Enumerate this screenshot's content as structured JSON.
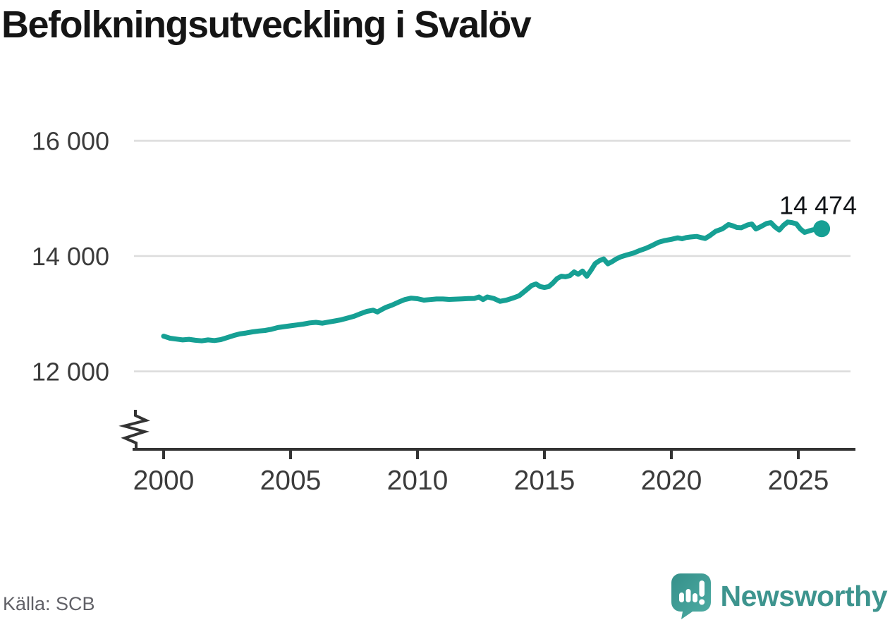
{
  "title": "Befolkningsutveckling i Svalöv",
  "source": "Källa: SCB",
  "logo": {
    "text": "Newsworthy"
  },
  "colors": {
    "line": "#16a094",
    "grid": "#dcdcdc",
    "axis": "#333333",
    "tick_label": "#3b3b3b",
    "title": "#151515",
    "source": "#616167",
    "logo": "#3d948e",
    "end_label": "#111418"
  },
  "chart_data": {
    "type": "line",
    "title": "Befolkningsutveckling i Svalöv",
    "series_name": "Befolkning i Svalöv",
    "xlabel": "",
    "ylabel": "",
    "x_range": [
      2000,
      2026
    ],
    "ylim": [
      12000,
      16000
    ],
    "axis_break": true,
    "grid": "horizontal",
    "legend": "none",
    "xticks": [
      {
        "value": 2000,
        "label": "2000"
      },
      {
        "value": 2005,
        "label": "2005"
      },
      {
        "value": 2010,
        "label": "2010"
      },
      {
        "value": 2015,
        "label": "2015"
      },
      {
        "value": 2020,
        "label": "2020"
      },
      {
        "value": 2025,
        "label": "2025"
      }
    ],
    "yticks": [
      {
        "value": 16000,
        "label": "16 000"
      },
      {
        "value": 14000,
        "label": "14 000"
      },
      {
        "value": 12000,
        "label": "12 000"
      }
    ],
    "x": [
      2000.0,
      2000.25,
      2000.5,
      2000.75,
      2001.0,
      2001.25,
      2001.5,
      2001.75,
      2002.0,
      2002.25,
      2002.5,
      2002.75,
      2003.0,
      2003.25,
      2003.5,
      2003.75,
      2004.0,
      2004.25,
      2004.5,
      2004.75,
      2005.0,
      2005.25,
      2005.5,
      2005.75,
      2006.0,
      2006.25,
      2006.5,
      2006.75,
      2007.0,
      2007.25,
      2007.5,
      2007.75,
      2008.0,
      2008.25,
      2008.42,
      2008.58,
      2008.75,
      2009.0,
      2009.25,
      2009.5,
      2009.75,
      2010.0,
      2010.25,
      2010.5,
      2010.75,
      2011.0,
      2011.25,
      2011.5,
      2011.75,
      2012.0,
      2012.25,
      2012.42,
      2012.58,
      2012.75,
      2013.0,
      2013.25,
      2013.5,
      2013.75,
      2014.0,
      2014.25,
      2014.5,
      2014.67,
      2014.83,
      2015.0,
      2015.17,
      2015.33,
      2015.5,
      2015.67,
      2015.83,
      2016.0,
      2016.17,
      2016.33,
      2016.5,
      2016.67,
      2016.83,
      2017.0,
      2017.17,
      2017.33,
      2017.5,
      2017.67,
      2017.83,
      2018.0,
      2018.25,
      2018.5,
      2018.75,
      2019.0,
      2019.25,
      2019.5,
      2019.75,
      2020.0,
      2020.25,
      2020.42,
      2020.58,
      2020.75,
      2021.0,
      2021.17,
      2021.33,
      2021.5,
      2021.75,
      2022.0,
      2022.25,
      2022.42,
      2022.58,
      2022.75,
      2023.0,
      2023.17,
      2023.33,
      2023.5,
      2023.75,
      2023.92,
      2024.08,
      2024.25,
      2024.42,
      2024.58,
      2024.75,
      2024.92,
      2025.08,
      2025.25,
      2025.42,
      2025.58,
      2025.75,
      2025.92
    ],
    "y": [
      12610,
      12575,
      12560,
      12545,
      12555,
      12540,
      12530,
      12545,
      12535,
      12550,
      12585,
      12620,
      12650,
      12665,
      12685,
      12700,
      12710,
      12730,
      12760,
      12775,
      12790,
      12805,
      12820,
      12840,
      12850,
      12835,
      12855,
      12875,
      12895,
      12925,
      12955,
      13000,
      13040,
      13060,
      13030,
      13070,
      13110,
      13150,
      13200,
      13245,
      13270,
      13260,
      13235,
      13245,
      13255,
      13255,
      13248,
      13252,
      13258,
      13262,
      13265,
      13290,
      13245,
      13290,
      13265,
      13215,
      13235,
      13270,
      13310,
      13400,
      13490,
      13515,
      13470,
      13455,
      13470,
      13530,
      13610,
      13650,
      13640,
      13660,
      13725,
      13685,
      13740,
      13650,
      13750,
      13870,
      13920,
      13950,
      13865,
      13905,
      13950,
      13985,
      14020,
      14050,
      14095,
      14135,
      14185,
      14240,
      14270,
      14290,
      14315,
      14300,
      14320,
      14330,
      14340,
      14320,
      14305,
      14350,
      14430,
      14470,
      14545,
      14525,
      14495,
      14490,
      14540,
      14555,
      14470,
      14505,
      14565,
      14580,
      14505,
      14450,
      14535,
      14590,
      14580,
      14560,
      14470,
      14410,
      14435,
      14455,
      14465,
      14474
    ],
    "last_point": {
      "x": 2025.92,
      "y": 14474,
      "label": "14 474"
    }
  }
}
